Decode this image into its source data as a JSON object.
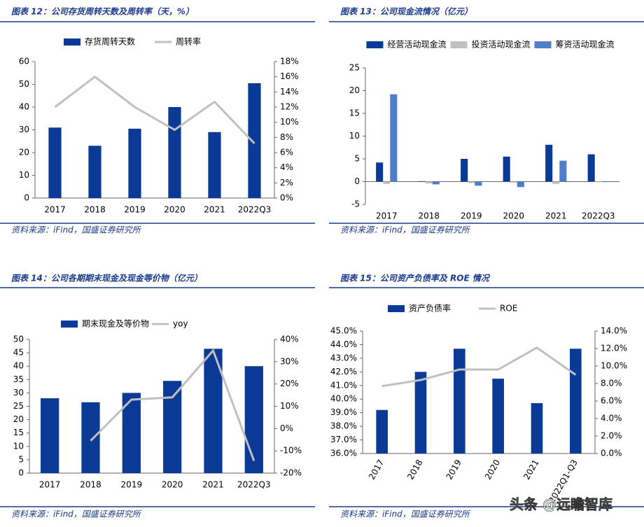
{
  "chart_data": [
    {
      "type": "combo",
      "title": "图表 12：公司存货周转天数及周转率（天，%）",
      "source": "资料来源：iFind，国盛证券研究所",
      "categories": [
        "2017",
        "2018",
        "2019",
        "2020",
        "2021",
        "2022Q3"
      ],
      "series": [
        {
          "name": "存货周转天数",
          "type": "bar",
          "color": "#0b3a96",
          "values": [
            31,
            23,
            30.5,
            40,
            29,
            50.5
          ]
        },
        {
          "name": "周转率",
          "type": "line",
          "axis": "y2",
          "color": "#c0c0c0",
          "values": [
            12,
            16,
            12,
            9,
            12.7,
            7.2
          ]
        }
      ],
      "ylim": [
        0,
        60
      ],
      "yticks": [
        0,
        10,
        20,
        30,
        40,
        50,
        60
      ],
      "y2lim": [
        0,
        18
      ],
      "y2ticks": [
        {
          "value": 0,
          "label": "0%"
        },
        {
          "value": 2,
          "label": "2%"
        },
        {
          "value": 4,
          "label": "4%"
        },
        {
          "value": 6,
          "label": "6%"
        },
        {
          "value": 8,
          "label": "8%"
        },
        {
          "value": 10,
          "label": "10%"
        },
        {
          "value": 12,
          "label": "12%"
        },
        {
          "value": 14,
          "label": "14%"
        },
        {
          "value": 16,
          "label": "16%"
        },
        {
          "value": 18,
          "label": "18%"
        }
      ]
    },
    {
      "type": "bar",
      "title": "图表 13：公司现金流情况（亿元）",
      "source": "资料来源：iFind，国盛证券研究所",
      "categories": [
        "2017",
        "2018",
        "2019",
        "2020",
        "2021",
        "2022Q3"
      ],
      "series": [
        {
          "name": "经营活动现金流",
          "color": "#0b3a96",
          "values": [
            4.2,
            0.1,
            5,
            5.5,
            8.1,
            6
          ]
        },
        {
          "name": "投资活动现金流",
          "color": "#c0c0c0",
          "values": [
            -0.5,
            -0.4,
            -0.3,
            -0.2,
            -0.5,
            -0.1
          ]
        },
        {
          "name": "筹资活动现金流",
          "color": "#4f7fc8",
          "values": [
            19.2,
            -0.6,
            -0.9,
            -1.2,
            4.6,
            -0.1
          ]
        }
      ],
      "ylim": [
        -5,
        25
      ],
      "yticks": [
        -5,
        0,
        5,
        10,
        15,
        20,
        25
      ]
    },
    {
      "type": "combo",
      "title": "图表 14：公司各期期末现金及现金等价物（亿元）",
      "source": "资料来源：iFind，国盛证券研究所",
      "categories": [
        "2017",
        "2018",
        "2019",
        "2020",
        "2021",
        "2022Q3"
      ],
      "series": [
        {
          "name": "期末现金及等价物",
          "type": "bar",
          "color": "#0b3a96",
          "values": [
            28,
            26.5,
            30,
            34.5,
            46.5,
            40
          ]
        },
        {
          "name": "yoy",
          "type": "line",
          "axis": "y2",
          "color": "#c0c0c0",
          "values": [
            null,
            -5.5,
            13,
            14,
            35,
            -14.5
          ]
        }
      ],
      "ylim": [
        0,
        50
      ],
      "yticks": [
        0,
        5,
        10,
        15,
        20,
        25,
        30,
        35,
        40,
        45,
        50
      ],
      "y2lim": [
        -20,
        40
      ],
      "y2ticks": [
        {
          "value": -20,
          "label": "-20%"
        },
        {
          "value": -10,
          "label": "-10%"
        },
        {
          "value": 0,
          "label": "0%"
        },
        {
          "value": 10,
          "label": "10%"
        },
        {
          "value": 20,
          "label": "20%"
        },
        {
          "value": 30,
          "label": "30%"
        },
        {
          "value": 40,
          "label": "40%"
        }
      ]
    },
    {
      "type": "combo",
      "title": "图表 15：公司资产负债率及 ROE 情况",
      "source": "资料来源：iFind，国盛证券研究所",
      "categories": [
        "2017",
        "2018",
        "2019",
        "2020",
        "2021",
        "2022Q1-Q3"
      ],
      "series": [
        {
          "name": "资产负债率",
          "type": "bar",
          "color": "#0b3a96",
          "values": [
            39.2,
            42,
            43.7,
            41.5,
            39.7,
            43.7
          ]
        },
        {
          "name": "ROE",
          "type": "line",
          "axis": "y2",
          "color": "#c0c0c0",
          "values": [
            7.7,
            8.4,
            9.6,
            9.6,
            12.1,
            9.0
          ]
        }
      ],
      "ylim": [
        36,
        45
      ],
      "yticks": [
        {
          "value": 36,
          "label": "36.0%"
        },
        {
          "value": 37,
          "label": "37.0%"
        },
        {
          "value": 38,
          "label": "38.0%"
        },
        {
          "value": 39,
          "label": "39.0%"
        },
        {
          "value": 40,
          "label": "40.0%"
        },
        {
          "value": 41,
          "label": "41.0%"
        },
        {
          "value": 42,
          "label": "42.0%"
        },
        {
          "value": 43,
          "label": "43.0%"
        },
        {
          "value": 44,
          "label": "44.0%"
        },
        {
          "value": 45,
          "label": "45.0%"
        }
      ],
      "y2lim": [
        0,
        14
      ],
      "y2ticks": [
        {
          "value": 0,
          "label": "0.0%"
        },
        {
          "value": 2,
          "label": "2.0%"
        },
        {
          "value": 4,
          "label": "4.0%"
        },
        {
          "value": 6,
          "label": "6.0%"
        },
        {
          "value": 8,
          "label": "8.0%"
        },
        {
          "value": 10,
          "label": "10.0%"
        },
        {
          "value": 12,
          "label": "12.0%"
        },
        {
          "value": 14,
          "label": "14.0%"
        }
      ]
    }
  ],
  "watermark": "头条 @远瞻智库"
}
